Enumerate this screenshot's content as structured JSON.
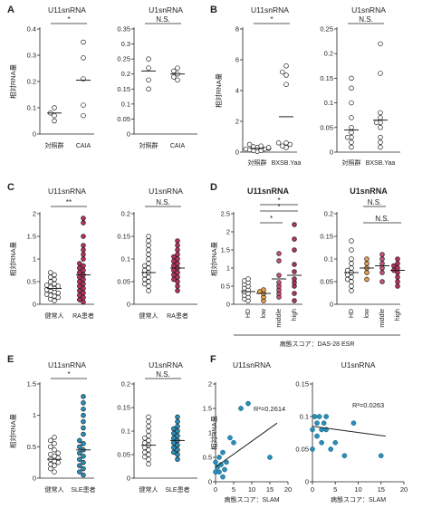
{
  "panels": {
    "A": {
      "letter": "A",
      "ylabel": "相対RNA量",
      "charts": [
        {
          "title": "U11snRNA",
          "ylim": [
            0,
            0.4
          ],
          "yticks": [
            0,
            0.1,
            0.2,
            0.3,
            0.4
          ],
          "categories": [
            "対照群",
            "CAIA"
          ],
          "sig": "*",
          "groups": [
            {
              "points": [
                0.05,
                0.07,
                0.08,
                0.1
              ],
              "mean": 0.08,
              "fill": "#ffffff"
            },
            {
              "points": [
                0.07,
                0.11,
                0.21,
                0.29,
                0.35
              ],
              "mean": 0.205,
              "fill": "#ffffff"
            }
          ]
        },
        {
          "title": "U1snRNA",
          "ylim": [
            0,
            0.35
          ],
          "yticks": [
            0,
            0.05,
            0.1,
            0.15,
            0.2,
            0.25,
            0.3,
            0.35
          ],
          "categories": [
            "対照群",
            "CAIA"
          ],
          "sig": "N.S.",
          "groups": [
            {
              "points": [
                0.15,
                0.18,
                0.22,
                0.25
              ],
              "mean": 0.21,
              "fill": "#ffffff"
            },
            {
              "points": [
                0.18,
                0.19,
                0.2,
                0.21,
                0.22
              ],
              "mean": 0.2,
              "fill": "#ffffff"
            }
          ]
        }
      ]
    },
    "B": {
      "letter": "B",
      "ylabel": "相対RNA量",
      "charts": [
        {
          "title": "U11snRNA",
          "ylim": [
            0,
            8
          ],
          "yticks": [
            0,
            2,
            4,
            6,
            8
          ],
          "categories": [
            "対照群",
            "BXSB.Yaa"
          ],
          "sig": "*",
          "groups": [
            {
              "points": [
                0.05,
                0.1,
                0.1,
                0.15,
                0.2,
                0.2,
                0.25,
                0.3,
                0.3,
                0.35,
                0.4,
                0.5
              ],
              "mean": 0.25,
              "fill": "#ffffff"
            },
            {
              "points": [
                0.3,
                0.4,
                0.5,
                0.6,
                0.6,
                4.4,
                5.0,
                5.2,
                5.6
              ],
              "mean": 2.3,
              "fill": "#ffffff"
            }
          ]
        },
        {
          "title": "U1snRNA",
          "ylim": [
            0,
            0.25
          ],
          "yticks": [
            0,
            0.05,
            0.1,
            0.15,
            0.2,
            0.25
          ],
          "categories": [
            "対照群",
            "BXSB.Yaa"
          ],
          "sig": "N.S.",
          "groups": [
            {
              "points": [
                0.01,
                0.02,
                0.03,
                0.03,
                0.04,
                0.05,
                0.07,
                0.1,
                0.13,
                0.15
              ],
              "mean": 0.045,
              "fill": "#ffffff"
            },
            {
              "points": [
                0.01,
                0.02,
                0.03,
                0.05,
                0.06,
                0.06,
                0.07,
                0.08,
                0.16,
                0.22
              ],
              "mean": 0.065,
              "fill": "#ffffff"
            }
          ]
        }
      ]
    },
    "C": {
      "letter": "C",
      "ylabel": "相対RNA量",
      "charts": [
        {
          "title": "U11snRNA",
          "ylim": [
            0,
            2
          ],
          "yticks": [
            0,
            0.5,
            1,
            1.5,
            2
          ],
          "categories": [
            "健常人",
            "RA患者"
          ],
          "sig": "**",
          "groups": [
            {
              "points": [
                0.08,
                0.12,
                0.15,
                0.18,
                0.2,
                0.22,
                0.25,
                0.27,
                0.3,
                0.32,
                0.35,
                0.38,
                0.4,
                0.42,
                0.45,
                0.5,
                0.55,
                0.6,
                0.65,
                0.7
              ],
              "mean": 0.35,
              "fill": "#ffffff"
            },
            {
              "points": [
                0.05,
                0.1,
                0.15,
                0.2,
                0.25,
                0.3,
                0.35,
                0.4,
                0.45,
                0.5,
                0.55,
                0.6,
                0.65,
                0.7,
                0.75,
                0.8,
                0.85,
                0.9,
                1.0,
                1.1,
                1.2,
                1.3,
                1.5,
                1.8,
                1.9
              ],
              "mean": 0.65,
              "fill": "#b5325a"
            }
          ]
        },
        {
          "title": "U1snRNA",
          "ylim": [
            0,
            0.2
          ],
          "yticks": [
            0,
            0.05,
            0.1,
            0.15,
            0.2
          ],
          "categories": [
            "健常人",
            "RA患者"
          ],
          "sig": "N.S.",
          "groups": [
            {
              "points": [
                0.03,
                0.04,
                0.045,
                0.05,
                0.055,
                0.06,
                0.065,
                0.07,
                0.075,
                0.08,
                0.085,
                0.09,
                0.1,
                0.11,
                0.12,
                0.13,
                0.14,
                0.15
              ],
              "mean": 0.07,
              "fill": "#ffffff"
            },
            {
              "points": [
                0.03,
                0.04,
                0.05,
                0.055,
                0.06,
                0.065,
                0.07,
                0.075,
                0.08,
                0.085,
                0.09,
                0.095,
                0.1,
                0.105,
                0.11,
                0.12,
                0.13,
                0.14
              ],
              "mean": 0.08,
              "fill": "#b5325a"
            }
          ]
        }
      ]
    },
    "D": {
      "letter": "D",
      "ylabel": "相対RNA量",
      "xlabel": "病態スコア：DAS-28 ESR",
      "charts": [
        {
          "title": "U11snRNA",
          "ylim": [
            0,
            2.5
          ],
          "yticks": [
            0,
            0.5,
            1,
            1.5,
            2,
            2.5
          ],
          "categories": [
            "HD",
            "low",
            "middle",
            "high"
          ],
          "sigs": [
            {
              "from": 1,
              "to": 3,
              "label": "*"
            },
            {
              "from": 1,
              "to": 2,
              "label": "*"
            },
            {
              "from": 1,
              "to": 3,
              "label": "*"
            }
          ],
          "groups": [
            {
              "points": [
                0.1,
                0.15,
                0.2,
                0.25,
                0.3,
                0.35,
                0.4,
                0.45,
                0.5,
                0.55,
                0.6,
                0.65,
                0.7
              ],
              "mean": 0.35,
              "fill": "#ffffff"
            },
            {
              "points": [
                0.1,
                0.2,
                0.3,
                0.35,
                0.4
              ],
              "mean": 0.3,
              "fill": "#e8a14a"
            },
            {
              "points": [
                0.2,
                0.3,
                0.4,
                0.5,
                0.6,
                0.8,
                1.2,
                1.4
              ],
              "mean": 0.7,
              "fill": "#c9507a"
            },
            {
              "points": [
                0.1,
                0.3,
                0.5,
                0.6,
                0.7,
                0.9,
                1.1,
                1.5,
                1.8,
                2.2
              ],
              "mean": 0.8,
              "fill": "#b5325a"
            }
          ]
        },
        {
          "title": "U1snRNA",
          "ylim": [
            0,
            0.2
          ],
          "yticks": [
            0,
            0.05,
            0.1,
            0.15,
            0.2
          ],
          "categories": [
            "HD",
            "low",
            "middle",
            "high"
          ],
          "sigs": [
            {
              "from": 1,
              "to": 2,
              "label": "N.S."
            },
            {
              "from": 1,
              "to": 3,
              "label": "N.S."
            }
          ],
          "groups": [
            {
              "points": [
                0.03,
                0.04,
                0.05,
                0.055,
                0.06,
                0.065,
                0.07,
                0.075,
                0.08,
                0.09,
                0.1,
                0.12,
                0.14
              ],
              "mean": 0.07,
              "fill": "#ffffff"
            },
            {
              "points": [
                0.055,
                0.07,
                0.08,
                0.09,
                0.1
              ],
              "mean": 0.08,
              "fill": "#e8a14a"
            },
            {
              "points": [
                0.05,
                0.07,
                0.08,
                0.09,
                0.1,
                0.11
              ],
              "mean": 0.085,
              "fill": "#c9507a"
            },
            {
              "points": [
                0.04,
                0.05,
                0.06,
                0.07,
                0.075,
                0.08,
                0.085,
                0.09,
                0.1
              ],
              "mean": 0.075,
              "fill": "#b5325a"
            }
          ]
        }
      ]
    },
    "E": {
      "letter": "E",
      "ylabel": "相対RNA量",
      "charts": [
        {
          "title": "U11snRNA",
          "ylim": [
            0,
            1.5
          ],
          "yticks": [
            0,
            0.5,
            1,
            1.5
          ],
          "categories": [
            "健常人",
            "SLE患者"
          ],
          "sig": "*",
          "groups": [
            {
              "points": [
                0.1,
                0.15,
                0.2,
                0.22,
                0.25,
                0.27,
                0.3,
                0.32,
                0.35,
                0.38,
                0.4,
                0.45,
                0.5,
                0.55,
                0.6,
                0.65
              ],
              "mean": 0.3,
              "fill": "#ffffff"
            },
            {
              "points": [
                0.05,
                0.1,
                0.15,
                0.2,
                0.25,
                0.3,
                0.35,
                0.4,
                0.45,
                0.5,
                0.55,
                0.6,
                0.7,
                0.8,
                0.9,
                1.0,
                1.1,
                1.2,
                1.3
              ],
              "mean": 0.45,
              "fill": "#2a8fb8"
            }
          ]
        },
        {
          "title": "U1snRNA",
          "ylim": [
            0,
            0.2
          ],
          "yticks": [
            0,
            0.05,
            0.1,
            0.15,
            0.2
          ],
          "categories": [
            "健常人",
            "SLE患者"
          ],
          "sig": "N.S.",
          "groups": [
            {
              "points": [
                0.03,
                0.04,
                0.045,
                0.05,
                0.055,
                0.06,
                0.065,
                0.07,
                0.075,
                0.08,
                0.085,
                0.09,
                0.1,
                0.11,
                0.12,
                0.13
              ],
              "mean": 0.07,
              "fill": "#ffffff"
            },
            {
              "points": [
                0.04,
                0.05,
                0.055,
                0.06,
                0.065,
                0.07,
                0.075,
                0.08,
                0.085,
                0.09,
                0.095,
                0.1,
                0.105,
                0.11,
                0.12,
                0.13
              ],
              "mean": 0.08,
              "fill": "#2a8fb8"
            }
          ]
        }
      ]
    },
    "F": {
      "letter": "F",
      "ylabel": "相対RNA量",
      "charts": [
        {
          "title": "U11snRNA",
          "xlabel": "病態スコア：SLAM",
          "xlim": [
            0,
            20
          ],
          "ylim": [
            0,
            2
          ],
          "xticks": [
            0,
            5,
            10,
            15,
            20
          ],
          "yticks": [
            0,
            0.5,
            1,
            1.5,
            2
          ],
          "r2": "R²=0.2614",
          "points": [
            [
              0,
              0.2
            ],
            [
              0,
              0.4
            ],
            [
              0.5,
              0.3
            ],
            [
              1,
              0.2
            ],
            [
              1,
              0.5
            ],
            [
              1.5,
              0.35
            ],
            [
              2,
              0.1
            ],
            [
              2,
              0.6
            ],
            [
              2.5,
              0.25
            ],
            [
              3,
              0.4
            ],
            [
              4,
              0.9
            ],
            [
              5,
              0.8
            ],
            [
              7,
              1.5
            ],
            [
              9,
              1.6
            ],
            [
              15,
              0.5
            ]
          ],
          "fit": [
            [
              0,
              0.3
            ],
            [
              17,
              1.2
            ]
          ],
          "fill": "#2a8fb8"
        },
        {
          "title": "U1snRNA",
          "xlabel": "病態スコア：SLAM",
          "xlim": [
            0,
            20
          ],
          "ylim": [
            0,
            0.15
          ],
          "xticks": [
            0,
            5,
            10,
            15,
            20
          ],
          "yticks": [
            0,
            0.05,
            0.1,
            0.15
          ],
          "r2": "R²=0.0263",
          "points": [
            [
              0,
              0.05
            ],
            [
              0,
              0.08
            ],
            [
              0.5,
              0.1
            ],
            [
              1,
              0.09
            ],
            [
              1,
              0.07
            ],
            [
              1.5,
              0.1
            ],
            [
              2,
              0.08
            ],
            [
              2,
              0.06
            ],
            [
              2.5,
              0.09
            ],
            [
              3,
              0.1
            ],
            [
              3,
              0.08
            ],
            [
              4,
              0.05
            ],
            [
              5,
              0.06
            ],
            [
              7,
              0.04
            ],
            [
              9,
              0.09
            ],
            [
              15,
              0.04
            ]
          ],
          "fit": [
            [
              0,
              0.085
            ],
            [
              16,
              0.07
            ]
          ],
          "fill": "#2a8fb8"
        }
      ]
    }
  }
}
